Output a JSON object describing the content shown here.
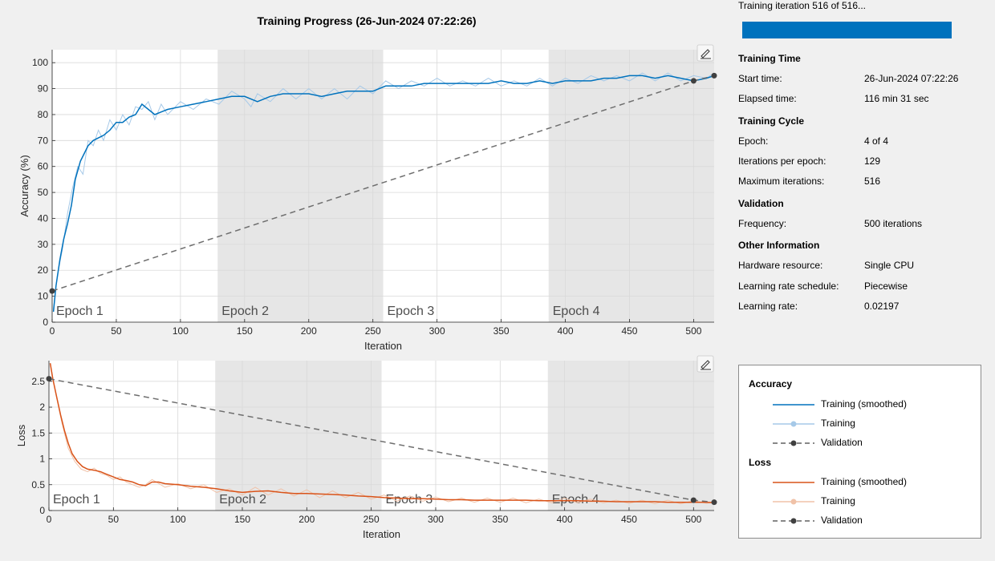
{
  "title": "Training Progress (26-Jun-2024 07:22:26)",
  "progress": {
    "label": "Training iteration 516 of 516...",
    "fraction": 1.0,
    "color": "#0072bd"
  },
  "info": {
    "sections": [
      {
        "heading": "Training Time",
        "rows": [
          {
            "key": "Start time:",
            "value": "26-Jun-2024 07:22:26"
          },
          {
            "key": "Elapsed time:",
            "value": "116 min 31 sec"
          }
        ]
      },
      {
        "heading": "Training Cycle",
        "rows": [
          {
            "key": "Epoch:",
            "value": "4 of 4"
          },
          {
            "key": "Iterations per epoch:",
            "value": "129"
          },
          {
            "key": "Maximum iterations:",
            "value": "516"
          }
        ]
      },
      {
        "heading": "Validation",
        "rows": [
          {
            "key": "Frequency:",
            "value": "500 iterations"
          }
        ]
      },
      {
        "heading": "Other Information",
        "rows": [
          {
            "key": "Hardware resource:",
            "value": "Single CPU"
          },
          {
            "key": "Learning rate schedule:",
            "value": "Piecewise"
          },
          {
            "key": "Learning rate:",
            "value": "0.02197"
          }
        ]
      }
    ]
  },
  "legend": {
    "groups": [
      {
        "heading": "Accuracy",
        "items": [
          {
            "label": "Training (smoothed)",
            "style": "smoothed",
            "color": "#0072bd"
          },
          {
            "label": "Training",
            "style": "raw",
            "color": "#a6c9e8"
          },
          {
            "label": "Validation",
            "style": "validation",
            "color": "#404040"
          }
        ]
      },
      {
        "heading": "Loss",
        "items": [
          {
            "label": "Training (smoothed)",
            "style": "smoothed",
            "color": "#d95319"
          },
          {
            "label": "Training",
            "style": "raw",
            "color": "#f0c2a8"
          },
          {
            "label": "Validation",
            "style": "validation",
            "color": "#404040"
          }
        ]
      }
    ]
  },
  "chart_data": [
    {
      "type": "line",
      "xlabel": "Iteration",
      "ylabel": "Accuracy (%)",
      "xlim": [
        0,
        516
      ],
      "ylim": [
        0,
        105
      ],
      "xticks": [
        0,
        50,
        100,
        150,
        200,
        250,
        300,
        350,
        400,
        450,
        500
      ],
      "yticks": [
        0,
        10,
        20,
        30,
        40,
        50,
        60,
        70,
        80,
        90,
        100
      ],
      "grid": true,
      "epochs": [
        {
          "label": "Epoch 1",
          "start": 0,
          "end": 129,
          "shade": false
        },
        {
          "label": "Epoch 2",
          "start": 129,
          "end": 258,
          "shade": true
        },
        {
          "label": "Epoch 3",
          "start": 258,
          "end": 387,
          "shade": false
        },
        {
          "label": "Epoch 4",
          "start": 387,
          "end": 516,
          "shade": true
        }
      ],
      "series": [
        {
          "name": "Training (smoothed)",
          "style": "smoothed",
          "color": "#0072bd",
          "x": [
            1,
            3,
            6,
            9,
            12,
            15,
            18,
            22,
            25,
            28,
            32,
            36,
            40,
            45,
            50,
            55,
            60,
            65,
            70,
            75,
            80,
            85,
            90,
            100,
            110,
            120,
            130,
            140,
            150,
            160,
            170,
            180,
            190,
            200,
            210,
            220,
            230,
            240,
            250,
            260,
            270,
            280,
            290,
            300,
            310,
            320,
            330,
            340,
            350,
            360,
            370,
            380,
            390,
            400,
            410,
            420,
            430,
            440,
            450,
            460,
            470,
            480,
            490,
            500,
            510,
            516
          ],
          "y": [
            4,
            14,
            24,
            32,
            38,
            45,
            55,
            62,
            65,
            68,
            70,
            71,
            72,
            74,
            77,
            77,
            79,
            80,
            84,
            82,
            80,
            81,
            82,
            83,
            84,
            85,
            86,
            87,
            87,
            85,
            87,
            88,
            88,
            88,
            87,
            88,
            89,
            89,
            89,
            91,
            91,
            91,
            92,
            92,
            92,
            92,
            92,
            92,
            93,
            92,
            92,
            93,
            92,
            93,
            93,
            93,
            94,
            94,
            95,
            95,
            94,
            95,
            94,
            93,
            94,
            95
          ]
        },
        {
          "name": "Training",
          "style": "raw",
          "color": "#a6c9e8",
          "x": [
            1,
            4,
            8,
            12,
            16,
            20,
            24,
            28,
            32,
            36,
            40,
            45,
            50,
            55,
            60,
            65,
            70,
            75,
            80,
            85,
            90,
            100,
            110,
            120,
            130,
            140,
            150,
            155,
            160,
            170,
            180,
            190,
            200,
            210,
            220,
            230,
            240,
            250,
            260,
            270,
            280,
            290,
            300,
            310,
            320,
            330,
            340,
            350,
            360,
            370,
            380,
            390,
            400,
            410,
            420,
            430,
            440,
            450,
            460,
            470,
            480,
            490,
            500,
            510,
            516
          ],
          "y": [
            5,
            18,
            28,
            42,
            52,
            60,
            57,
            70,
            68,
            74,
            70,
            78,
            74,
            80,
            76,
            83,
            82,
            85,
            78,
            84,
            80,
            85,
            82,
            86,
            84,
            89,
            86,
            83,
            88,
            85,
            90,
            86,
            90,
            86,
            90,
            86,
            91,
            88,
            93,
            90,
            93,
            91,
            94,
            91,
            93,
            91,
            94,
            91,
            93,
            91,
            94,
            91,
            94,
            92,
            95,
            93,
            95,
            93,
            96,
            93,
            96,
            93,
            95,
            94,
            96
          ]
        },
        {
          "name": "Validation",
          "style": "validation",
          "color": "#404040",
          "x": [
            0,
            500,
            516
          ],
          "y": [
            12,
            93,
            95
          ]
        }
      ]
    },
    {
      "type": "line",
      "xlabel": "Iteration",
      "ylabel": "Loss",
      "xlim": [
        0,
        516
      ],
      "ylim": [
        0,
        2.9
      ],
      "xticks": [
        0,
        50,
        100,
        150,
        200,
        250,
        300,
        350,
        400,
        450,
        500
      ],
      "yticks": [
        0,
        0.5,
        1,
        1.5,
        2,
        2.5
      ],
      "grid": true,
      "epochs": [
        {
          "label": "Epoch 1",
          "start": 0,
          "end": 129,
          "shade": false
        },
        {
          "label": "Epoch 2",
          "start": 129,
          "end": 258,
          "shade": true
        },
        {
          "label": "Epoch 3",
          "start": 258,
          "end": 387,
          "shade": false
        },
        {
          "label": "Epoch 4",
          "start": 387,
          "end": 516,
          "shade": true
        }
      ],
      "series": [
        {
          "name": "Training (smoothed)",
          "style": "smoothed",
          "color": "#d95319",
          "x": [
            1,
            3,
            6,
            9,
            12,
            15,
            18,
            22,
            26,
            30,
            35,
            40,
            45,
            50,
            55,
            60,
            65,
            70,
            75,
            80,
            85,
            90,
            100,
            110,
            120,
            130,
            140,
            150,
            160,
            170,
            180,
            190,
            200,
            210,
            220,
            230,
            240,
            250,
            260,
            270,
            280,
            290,
            300,
            310,
            320,
            330,
            340,
            350,
            360,
            370,
            380,
            390,
            400,
            410,
            420,
            430,
            440,
            450,
            460,
            470,
            480,
            490,
            500,
            510,
            516
          ],
          "y": [
            2.85,
            2.55,
            2.2,
            1.85,
            1.55,
            1.3,
            1.1,
            0.95,
            0.85,
            0.8,
            0.78,
            0.75,
            0.7,
            0.65,
            0.6,
            0.58,
            0.55,
            0.5,
            0.48,
            0.55,
            0.55,
            0.52,
            0.5,
            0.47,
            0.45,
            0.42,
            0.38,
            0.35,
            0.37,
            0.38,
            0.35,
            0.33,
            0.33,
            0.32,
            0.31,
            0.3,
            0.28,
            0.27,
            0.25,
            0.24,
            0.23,
            0.23,
            0.22,
            0.21,
            0.21,
            0.2,
            0.2,
            0.2,
            0.2,
            0.2,
            0.19,
            0.19,
            0.19,
            0.19,
            0.18,
            0.18,
            0.17,
            0.17,
            0.17,
            0.17,
            0.16,
            0.16,
            0.16,
            0.16,
            0.15
          ]
        },
        {
          "name": "Training",
          "style": "raw",
          "color": "#f0c2a8",
          "x": [
            1,
            5,
            10,
            15,
            20,
            25,
            30,
            35,
            40,
            45,
            50,
            55,
            60,
            65,
            70,
            75,
            80,
            90,
            100,
            110,
            120,
            130,
            140,
            150,
            160,
            170,
            180,
            190,
            200,
            210,
            220,
            230,
            240,
            250,
            260,
            270,
            280,
            290,
            300,
            310,
            320,
            330,
            340,
            350,
            360,
            370,
            380,
            390,
            400,
            410,
            420,
            430,
            440,
            450,
            460,
            470,
            480,
            490,
            500,
            510,
            516
          ],
          "y": [
            2.85,
            2.3,
            1.7,
            1.2,
            0.95,
            0.8,
            0.75,
            0.82,
            0.72,
            0.68,
            0.6,
            0.65,
            0.55,
            0.5,
            0.45,
            0.5,
            0.6,
            0.45,
            0.52,
            0.42,
            0.5,
            0.35,
            0.42,
            0.3,
            0.45,
            0.3,
            0.42,
            0.28,
            0.4,
            0.25,
            0.38,
            0.25,
            0.35,
            0.22,
            0.3,
            0.18,
            0.28,
            0.18,
            0.26,
            0.17,
            0.24,
            0.16,
            0.24,
            0.16,
            0.24,
            0.15,
            0.22,
            0.15,
            0.24,
            0.15,
            0.22,
            0.15,
            0.2,
            0.14,
            0.2,
            0.13,
            0.2,
            0.13,
            0.19,
            0.14,
            0.16
          ]
        },
        {
          "name": "Validation",
          "style": "validation",
          "color": "#404040",
          "x": [
            0,
            500,
            516
          ],
          "y": [
            2.55,
            0.2,
            0.16
          ]
        }
      ]
    }
  ]
}
